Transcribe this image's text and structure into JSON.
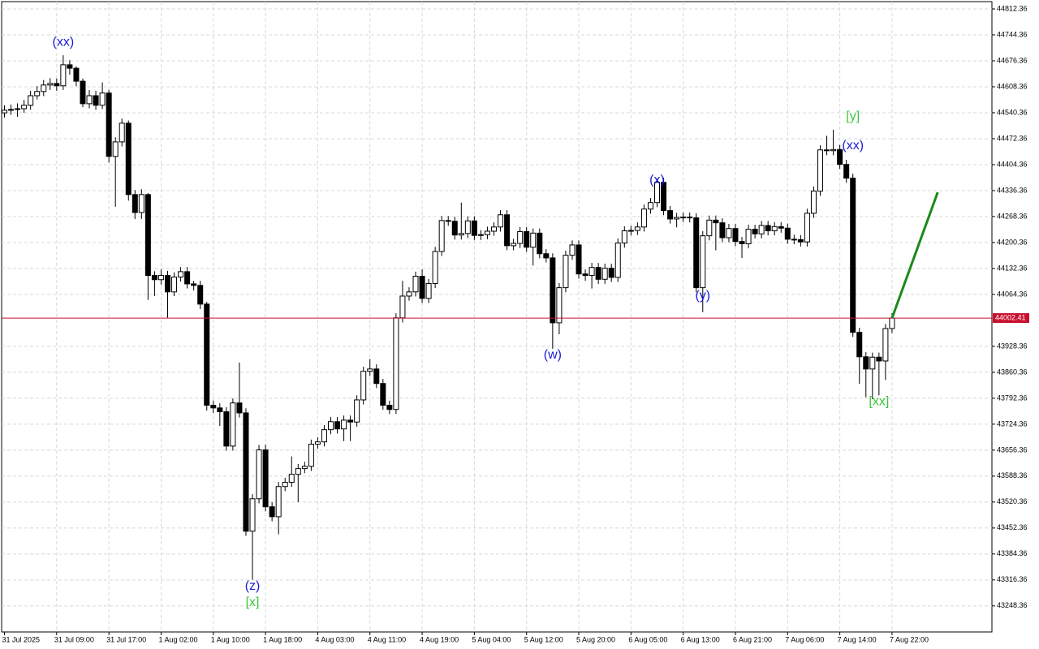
{
  "chart_data": {
    "type": "candlestick",
    "categories": [
      "31 Jul 2025",
      null,
      null,
      null,
      null,
      null,
      null,
      null,
      "31 Jul 09:00",
      null,
      null,
      null,
      null,
      null,
      null,
      null,
      "31 Jul 17:00",
      null,
      null,
      null,
      null,
      null,
      null,
      null,
      "1 Aug 02:00",
      null,
      null,
      null,
      null,
      null,
      null,
      null,
      "1 Aug 10:00",
      null,
      null,
      null,
      null,
      null,
      null,
      null,
      "1 Aug 18:00",
      null,
      null,
      null,
      null,
      null,
      null,
      null,
      "4 Aug 03:00",
      null,
      null,
      null,
      null,
      null,
      null,
      null,
      "4 Aug 11:00",
      null,
      null,
      null,
      null,
      null,
      null,
      null,
      "4 Aug 19:00",
      null,
      null,
      null,
      null,
      null,
      null,
      null,
      "5 Aug 04:00",
      null,
      null,
      null,
      null,
      null,
      null,
      null,
      "5 Aug 12:00",
      null,
      null,
      null,
      null,
      null,
      null,
      null,
      "5 Aug 20:00",
      null,
      null,
      null,
      null,
      null,
      null,
      null,
      "6 Aug 05:00",
      null,
      null,
      null,
      null,
      null,
      null,
      null,
      "6 Aug 13:00",
      null,
      null,
      null,
      null,
      null,
      null,
      null,
      "6 Aug 21:00",
      null,
      null,
      null,
      null,
      null,
      null,
      null,
      "7 Aug 06:00",
      null,
      null,
      null,
      null,
      null,
      null,
      null,
      "7 Aug 14:00",
      null,
      null,
      null,
      null,
      null,
      null,
      null,
      "7 Aug 22:00"
    ],
    "open": [
      44540,
      44547,
      44549,
      44551,
      44560,
      44585,
      44596,
      44613,
      44617,
      44611,
      44666,
      44657,
      44623,
      44564,
      44585,
      44560,
      44592,
      44426,
      44464,
      44513,
      44326,
      44279,
      44326,
      44114,
      44103,
      44114,
      44071,
      44110,
      44124,
      44092,
      44088,
      44039,
      43774,
      43767,
      43757,
      43667,
      43780,
      43754,
      43444,
      43529,
      43657,
      43508,
      43482,
      43561,
      43572,
      43593,
      43608,
      43614,
      43672,
      43678,
      43710,
      43731,
      43712,
      43735,
      43730,
      43788,
      43863,
      43869,
      43831,
      43774,
      43763,
      44003,
      44060,
      44071,
      44112,
      44054,
      44093,
      44177,
      44258,
      44256,
      44220,
      44224,
      44257,
      44219,
      44221,
      44230,
      44241,
      44273,
      44192,
      44198,
      44229,
      44188,
      44225,
      44171,
      44160,
      43990,
      44082,
      44167,
      44194,
      44118,
      44114,
      44135,
      44104,
      44133,
      44109,
      44199,
      44231,
      44232,
      44241,
      44288,
      44305,
      44358,
      44284,
      44262,
      44266,
      44267,
      44265,
      44082,
      44218,
      44259,
      44252,
      44213,
      44237,
      44203,
      44197,
      44235,
      44223,
      44245,
      44231,
      44242,
      44238,
      44209,
      44208,
      44202,
      44277,
      44335,
      44443,
      44441,
      44444,
      44405,
      44369,
      43965,
      43901,
      43869,
      43900,
      43890,
      43975
    ],
    "high": [
      44560,
      44562,
      44565,
      44574,
      44598,
      44610,
      44626,
      44631,
      44630,
      44691,
      44678,
      44662,
      44630,
      44600,
      44598,
      44620,
      44600,
      44476,
      44525,
      44520,
      44338,
      44340,
      44330,
      44125,
      44130,
      44126,
      44122,
      44136,
      44136,
      44100,
      44100,
      44045,
      43786,
      43779,
      43769,
      43792,
      43886,
      43766,
      43541,
      43670,
      43671,
      43520,
      43573,
      43584,
      43640,
      43620,
      43626,
      43684,
      43690,
      43722,
      43743,
      43743,
      43747,
      43747,
      43800,
      43875,
      43895,
      43881,
      43843,
      43786,
      44015,
      44100,
      44083,
      44124,
      44130,
      44105,
      44189,
      44270,
      44270,
      44268,
      44305,
      44269,
      44269,
      44233,
      44242,
      44253,
      44285,
      44285,
      44210,
      44241,
      44241,
      44237,
      44237,
      44183,
      44172,
      44094,
      44179,
      44206,
      44206,
      44130,
      44147,
      44147,
      44145,
      44145,
      44211,
      44243,
      44244,
      44253,
      44300,
      44317,
      44368,
      44370,
      44296,
      44278,
      44279,
      44279,
      44277,
      44230,
      44271,
      44271,
      44264,
      44249,
      44249,
      44215,
      44247,
      44247,
      44257,
      44257,
      44254,
      44254,
      44250,
      44221,
      44220,
      44289,
      44347,
      44455,
      44480,
      44496,
      44456,
      44417,
      44381,
      43977,
      43913,
      43912,
      43912,
      43987,
      44015
    ],
    "low": [
      44528,
      44535,
      44530,
      44540,
      44548,
      44575,
      44584,
      44600,
      44598,
      44600,
      44640,
      44610,
      44555,
      44552,
      44548,
      44550,
      44410,
      44294,
      44452,
      44310,
      44262,
      44262,
      44050,
      44060,
      44090,
      44003,
      44060,
      44098,
      44080,
      44075,
      44026,
      43760,
      43754,
      43720,
      43655,
      43655,
      43742,
      43432,
      43317,
      43517,
      43496,
      43470,
      43436,
      43549,
      43560,
      43520,
      43596,
      43602,
      43660,
      43666,
      43698,
      43700,
      43680,
      43680,
      43718,
      43776,
      43851,
      43819,
      43762,
      43751,
      43751,
      43991,
      44048,
      44059,
      44042,
      44042,
      44081,
      44165,
      44244,
      44208,
      44208,
      44212,
      44207,
      44207,
      44209,
      44218,
      44229,
      44180,
      44180,
      44186,
      44176,
      44140,
      44159,
      44148,
      43922,
      43960,
      44070,
      44155,
      44106,
      44100,
      44080,
      44092,
      44092,
      44097,
      44097,
      44187,
      44219,
      44220,
      44229,
      44276,
      44293,
      44272,
      44250,
      44240,
      44254,
      44253,
      44070,
      44018,
      44206,
      44180,
      44201,
      44201,
      44191,
      44160,
      44185,
      44211,
      44211,
      44219,
      44219,
      44226,
      44197,
      44196,
      44190,
      44190,
      44265,
      44323,
      44429,
      44429,
      44393,
      44357,
      43953,
      43830,
      43795,
      43790,
      43800,
      43840,
      43963
    ],
    "close": [
      44547,
      44549,
      44551,
      44560,
      44585,
      44596,
      44613,
      44617,
      44611,
      44666,
      44657,
      44623,
      44564,
      44585,
      44560,
      44592,
      44426,
      44464,
      44513,
      44326,
      44279,
      44326,
      44114,
      44103,
      44114,
      44071,
      44110,
      44124,
      44092,
      44088,
      44039,
      43774,
      43767,
      43757,
      43667,
      43780,
      43754,
      43444,
      43529,
      43657,
      43508,
      43482,
      43561,
      43572,
      43593,
      43608,
      43614,
      43672,
      43678,
      43710,
      43731,
      43712,
      43735,
      43730,
      43788,
      43863,
      43869,
      43831,
      43774,
      43763,
      44003,
      44060,
      44071,
      44112,
      44054,
      44093,
      44177,
      44258,
      44256,
      44220,
      44224,
      44257,
      44219,
      44221,
      44230,
      44241,
      44273,
      44192,
      44198,
      44229,
      44188,
      44225,
      44171,
      44160,
      43990,
      44082,
      44167,
      44194,
      44118,
      44114,
      44135,
      44104,
      44133,
      44109,
      44199,
      44231,
      44232,
      44241,
      44288,
      44305,
      44358,
      44284,
      44262,
      44266,
      44267,
      44265,
      44082,
      44218,
      44259,
      44252,
      44213,
      44237,
      44203,
      44197,
      44235,
      44223,
      44245,
      44231,
      44242,
      44238,
      44209,
      44208,
      44202,
      44277,
      44335,
      44443,
      44441,
      44444,
      44405,
      44369,
      43965,
      43901,
      43869,
      43900,
      43890,
      43975,
      44002.41
    ],
    "ylim": [
      43180,
      44831.5
    ],
    "yticks": [
      44812.36,
      44744.36,
      44676.36,
      44608.36,
      44540.36,
      44472.36,
      44404.36,
      44336.36,
      44268.36,
      44200.36,
      44132.36,
      44064.36,
      43928.36,
      43860.36,
      43792.36,
      43724.36,
      43656.36,
      43588.36,
      43520.36,
      43452.36,
      43384.36,
      43316.36,
      43248.36
    ],
    "grid": true,
    "current_price": 44002.41,
    "current_price_color": "#c8102e",
    "annotations": [
      {
        "text": "(xx)",
        "color": "#1a1ad6"
      },
      {
        "text": "(z)",
        "color": "#1a1ad6"
      },
      {
        "text": "[x]",
        "color": "#3cc83c"
      },
      {
        "text": "(w)",
        "color": "#1a1ad6"
      },
      {
        "text": "(x)",
        "color": "#1a1ad6"
      },
      {
        "text": "(y)",
        "color": "#1a1ad6"
      },
      {
        "text": "[y]",
        "color": "#3cc83c"
      },
      {
        "text": "(xx)",
        "color": "#1a1ad6"
      },
      {
        "text": "[xx]",
        "color": "#3cc83c"
      }
    ],
    "forecast": {
      "color": "#1a8a1a",
      "x": [
        136,
        143
      ],
      "values": [
        44002.41,
        44332
      ]
    }
  }
}
